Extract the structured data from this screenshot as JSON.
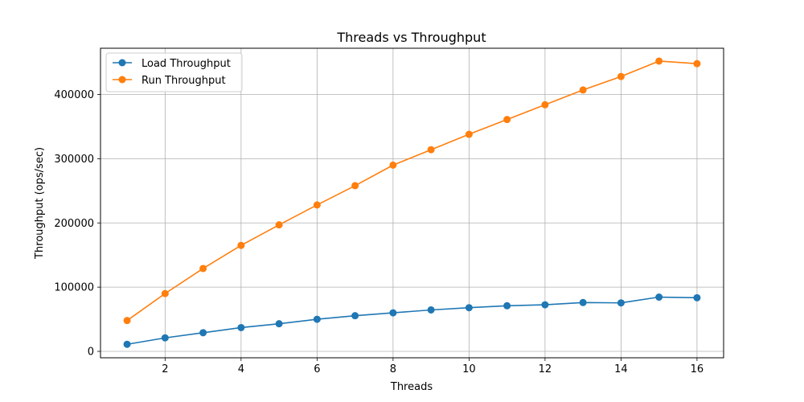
{
  "chart_data": {
    "type": "line",
    "title": "Threads vs Throughput",
    "xlabel": "Threads",
    "ylabel": "Throughput (ops/sec)",
    "x": [
      1,
      2,
      3,
      4,
      5,
      6,
      7,
      8,
      9,
      10,
      11,
      12,
      13,
      14,
      15,
      16
    ],
    "xlim": [
      0.3,
      16.7
    ],
    "ylim": [
      -10000,
      472000
    ],
    "x_ticks": [
      2,
      4,
      6,
      8,
      10,
      12,
      14,
      16
    ],
    "y_ticks": [
      0,
      100000,
      200000,
      300000,
      400000
    ],
    "grid": true,
    "legend_position": "top-left",
    "series": [
      {
        "name": "Load Throughput",
        "color": "#1f77b4",
        "values": [
          11000,
          21000,
          29000,
          37000,
          43000,
          50000,
          55500,
          60000,
          64500,
          68000,
          71000,
          72500,
          76000,
          75500,
          84500,
          83500
        ]
      },
      {
        "name": "Run Throughput",
        "color": "#ff7f0e",
        "values": [
          48000,
          90000,
          129000,
          165000,
          197000,
          228000,
          258000,
          290000,
          314000,
          338000,
          361000,
          384000,
          407000,
          428000,
          452000,
          448000
        ]
      }
    ]
  }
}
